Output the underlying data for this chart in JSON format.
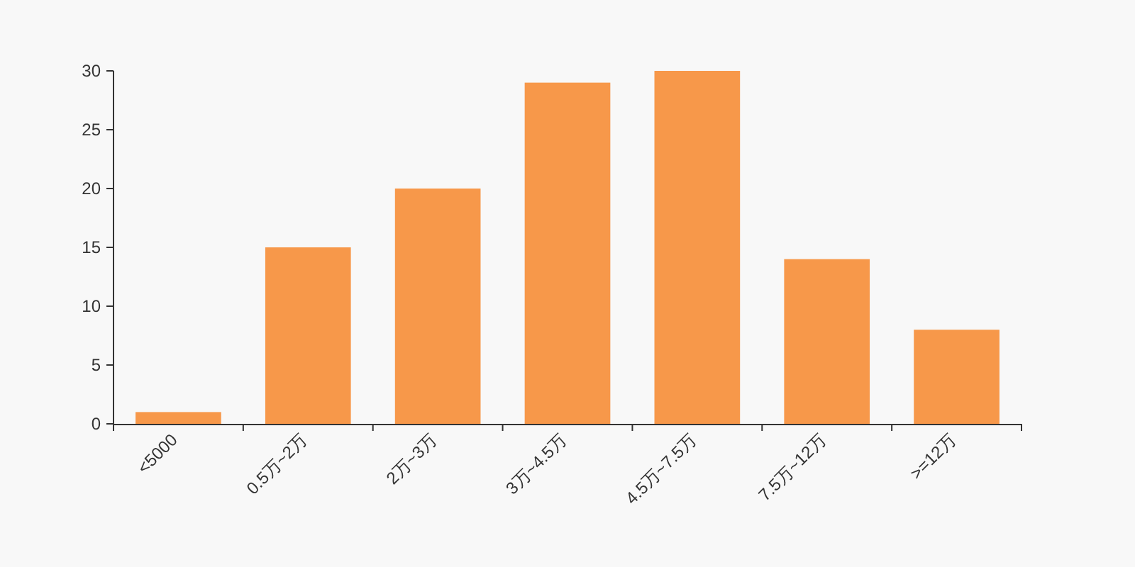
{
  "chart_data": {
    "type": "bar",
    "categories": [
      "<5000",
      "0.5万~2万",
      "2万~3万",
      "3万~4.5万",
      "4.5万~7.5万",
      "7.5万~12万",
      ">=12万"
    ],
    "values": [
      1,
      15,
      20,
      29,
      30,
      14,
      8
    ],
    "color": "#f7984a",
    "ylim": [
      0,
      30
    ],
    "yticks": [
      0,
      5,
      10,
      15,
      20,
      25,
      30
    ],
    "grid": false
  }
}
